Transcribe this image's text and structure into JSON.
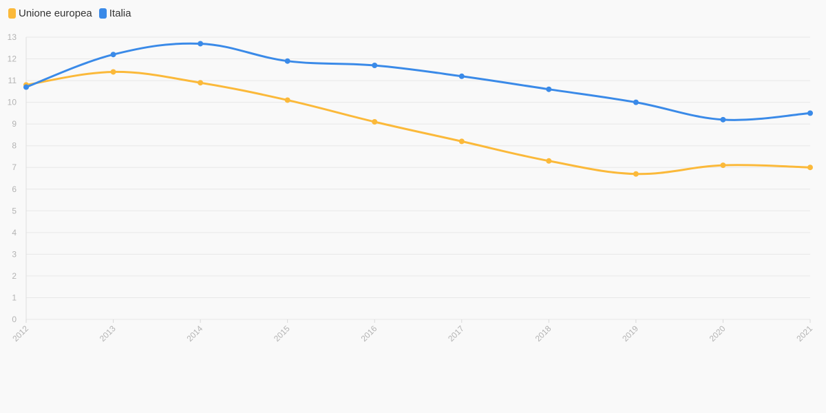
{
  "chart_data": {
    "type": "line",
    "x": [
      "2012",
      "2013",
      "2014",
      "2015",
      "2016",
      "2017",
      "2018",
      "2019",
      "2020",
      "2021"
    ],
    "series": [
      {
        "name": "Unione europea",
        "color": "#fbb93a",
        "values": [
          10.8,
          11.4,
          10.9,
          10.1,
          9.1,
          8.2,
          7.3,
          6.7,
          7.1,
          7.0
        ]
      },
      {
        "name": "Italia",
        "color": "#3a8ae8",
        "values": [
          10.7,
          12.2,
          12.7,
          11.9,
          11.7,
          11.2,
          10.6,
          10.0,
          9.2,
          9.5
        ]
      }
    ],
    "ylim": [
      0,
      13
    ],
    "yticks": [
      0,
      1,
      2,
      3,
      4,
      5,
      6,
      7,
      8,
      9,
      10,
      11,
      12,
      13
    ],
    "grid": true,
    "legend_position": "top-left",
    "title": "",
    "xlabel": "",
    "ylabel": ""
  }
}
